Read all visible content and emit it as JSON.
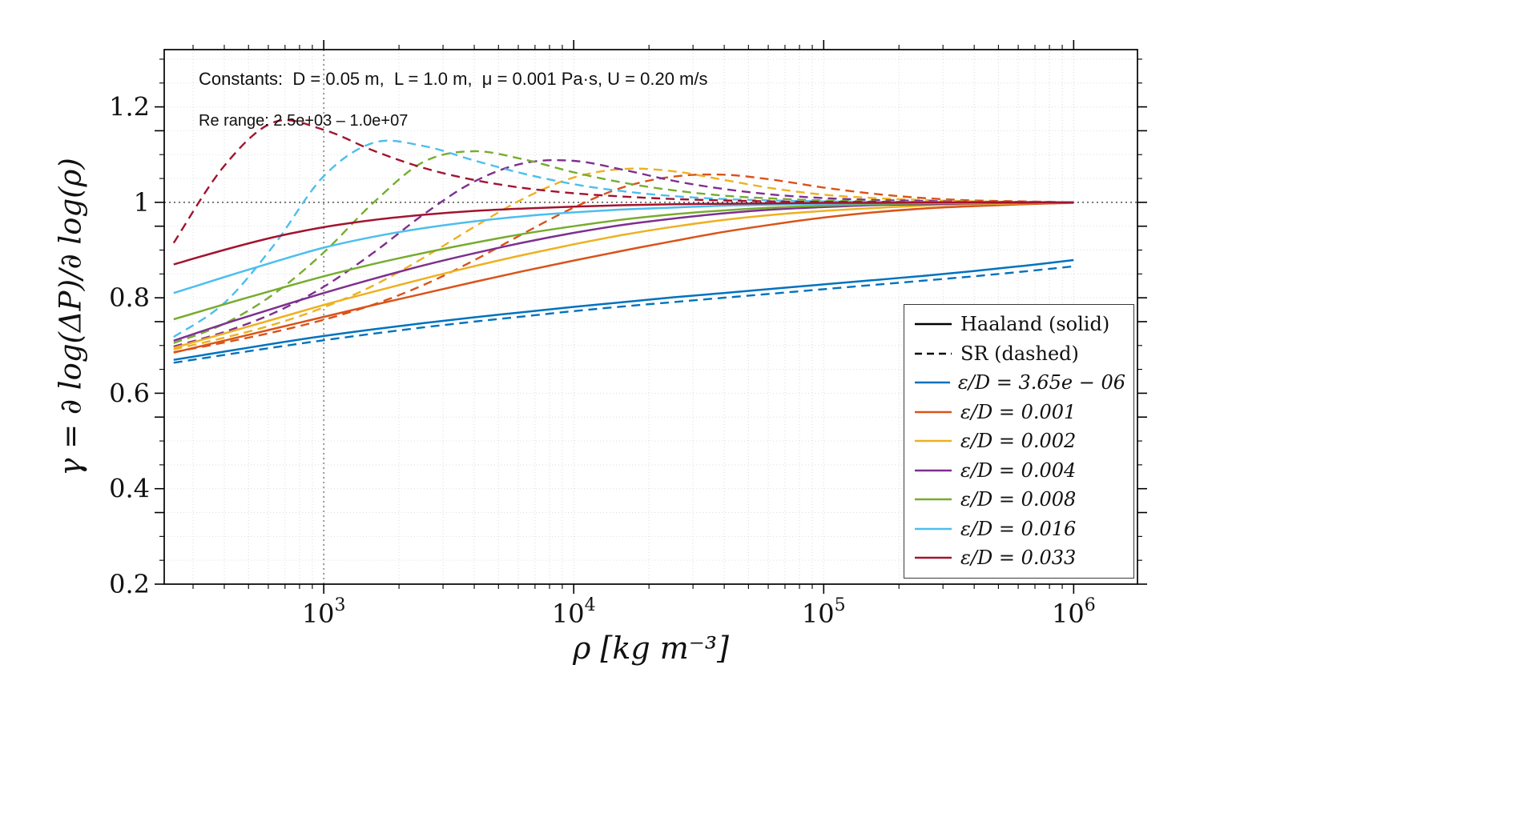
{
  "chart_data": {
    "type": "line",
    "title": "",
    "xlabel": "ρ [kg m⁻³]",
    "ylabel": "γ = ∂ log(ΔP)/∂ log(ρ)",
    "xscale": "log",
    "xlim": [
      230,
      1800000
    ],
    "ylim": [
      0.2,
      1.32
    ],
    "xticks": [
      1000,
      10000,
      100000,
      1000000
    ],
    "yticks": [
      0.2,
      0.4,
      0.6,
      0.8,
      1.0,
      1.2
    ],
    "ytick_labels": [
      "0.2",
      "0.4",
      "0.6",
      "0.8",
      "1",
      "1.2"
    ],
    "grid": true,
    "reference_lines": {
      "horizontal_y": 1.0,
      "vertical_x": 1000,
      "color": "#3a3a3a"
    },
    "annotations": {
      "constants": "Constants:  D = 0.05 m,  L = 1.0 m,  μ = 0.001 Pa·s, U = 0.20 m/s",
      "re_range": "Re range: 2.5e+03 – 1.0e+07"
    },
    "legend": {
      "position": "lower right inside",
      "style_entries": [
        {
          "label": "Haaland (solid)",
          "dashed": false
        },
        {
          "label": "SR (dashed)",
          "dashed": true
        }
      ]
    },
    "x": [
      251,
      398,
      631,
      1000,
      1585,
      2512,
      3981,
      6310,
      10000,
      15849,
      25119,
      39811,
      63096,
      100000,
      158489,
      251189,
      398107,
      630957,
      1000000
    ],
    "series": [
      {
        "label": "ε/D = 3.65e − 06",
        "color": "#0072BD",
        "haaland": [
          0.67,
          0.687,
          0.704,
          0.72,
          0.734,
          0.747,
          0.759,
          0.77,
          0.781,
          0.791,
          0.801,
          0.81,
          0.819,
          0.828,
          0.837,
          0.846,
          0.856,
          0.867,
          0.879
        ],
        "sr": [
          0.664,
          0.68,
          0.696,
          0.711,
          0.725,
          0.738,
          0.75,
          0.761,
          0.772,
          0.782,
          0.791,
          0.8,
          0.809,
          0.818,
          0.827,
          0.836,
          0.845,
          0.855,
          0.866
        ]
      },
      {
        "label": "ε/D = 0.001",
        "color": "#D95319",
        "haaland": [
          0.685,
          0.71,
          0.735,
          0.76,
          0.785,
          0.809,
          0.833,
          0.856,
          0.878,
          0.899,
          0.919,
          0.938,
          0.954,
          0.968,
          0.979,
          0.987,
          0.992,
          0.996,
          0.999
        ],
        "sr": [
          0.686,
          0.706,
          0.728,
          0.754,
          0.786,
          0.827,
          0.878,
          0.935,
          0.989,
          1.032,
          1.054,
          1.058,
          1.047,
          1.031,
          1.018,
          1.009,
          1.004,
          1.002,
          1.0
        ]
      },
      {
        "label": "ε/D = 0.002",
        "color": "#EDB120",
        "haaland": [
          0.695,
          0.725,
          0.755,
          0.785,
          0.813,
          0.84,
          0.866,
          0.89,
          0.912,
          0.932,
          0.949,
          0.963,
          0.974,
          0.982,
          0.988,
          0.993,
          0.996,
          0.998,
          1.0
        ],
        "sr": [
          0.692,
          0.716,
          0.744,
          0.78,
          0.826,
          0.884,
          0.948,
          1.008,
          1.052,
          1.07,
          1.065,
          1.047,
          1.029,
          1.016,
          1.009,
          1.005,
          1.002,
          1.001,
          1.0
        ]
      },
      {
        "label": "ε/D = 0.004",
        "color": "#7E2F8E",
        "haaland": [
          0.71,
          0.745,
          0.778,
          0.81,
          0.84,
          0.868,
          0.893,
          0.916,
          0.936,
          0.953,
          0.966,
          0.977,
          0.985,
          0.99,
          0.994,
          0.996,
          0.998,
          0.999,
          1.0
        ],
        "sr": [
          0.698,
          0.728,
          0.768,
          0.823,
          0.895,
          0.975,
          1.043,
          1.082,
          1.087,
          1.068,
          1.045,
          1.028,
          1.016,
          1.009,
          1.005,
          1.003,
          1.001,
          1.001,
          1.0
        ]
      },
      {
        "label": "ε/D = 0.008",
        "color": "#77AC30",
        "haaland": [
          0.755,
          0.786,
          0.816,
          0.845,
          0.871,
          0.894,
          0.915,
          0.934,
          0.95,
          0.964,
          0.975,
          0.983,
          0.989,
          0.993,
          0.996,
          0.998,
          0.999,
          1.0,
          1.0
        ],
        "sr": [
          0.705,
          0.745,
          0.808,
          0.895,
          1.0,
          1.085,
          1.107,
          1.09,
          1.063,
          1.041,
          1.025,
          1.014,
          1.008,
          1.004,
          1.002,
          1.001,
          1.001,
          1.0,
          1.0
        ]
      },
      {
        "label": "ε/D = 0.016",
        "color": "#4DBEEE",
        "haaland": [
          0.81,
          0.843,
          0.875,
          0.905,
          0.928,
          0.946,
          0.96,
          0.971,
          0.979,
          0.985,
          0.989,
          0.993,
          0.995,
          0.997,
          0.998,
          0.999,
          0.999,
          1.0,
          1.0
        ],
        "sr": [
          0.718,
          0.788,
          0.91,
          1.055,
          1.125,
          1.118,
          1.088,
          1.06,
          1.038,
          1.023,
          1.013,
          1.007,
          1.004,
          1.002,
          1.001,
          1.001,
          1.0,
          1.0,
          1.0
        ]
      },
      {
        "label": "ε/D = 0.033",
        "color": "#A2142F",
        "haaland": [
          0.87,
          0.9,
          0.927,
          0.948,
          0.963,
          0.974,
          0.982,
          0.987,
          0.991,
          0.994,
          0.996,
          0.997,
          0.998,
          0.999,
          0.999,
          1.0,
          1.0,
          1.0,
          1.0
        ],
        "sr": [
          0.915,
          1.075,
          1.168,
          1.152,
          1.108,
          1.072,
          1.047,
          1.03,
          1.019,
          1.012,
          1.007,
          1.004,
          1.002,
          1.001,
          1.001,
          1.0,
          1.0,
          1.0,
          1.0
        ]
      }
    ]
  }
}
